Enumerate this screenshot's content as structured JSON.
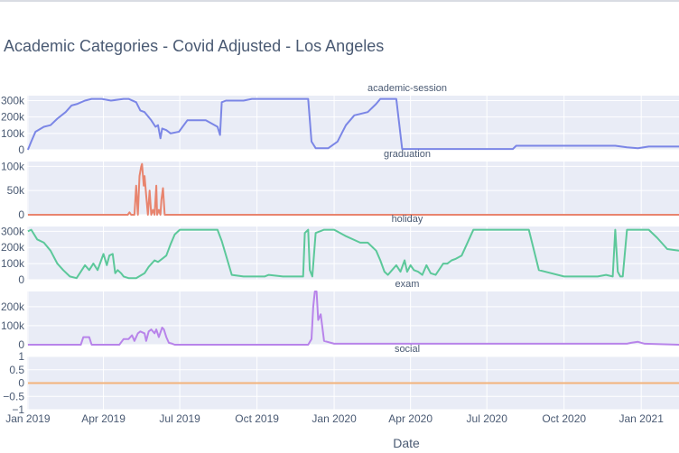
{
  "chart_data": {
    "type": "line",
    "title": "Academic Categories - Covid Adjusted - Los Angeles",
    "xlabel": "Date",
    "x_ticks": [
      "Jan 2019",
      "Apr 2019",
      "Jul 2019",
      "Oct 2019",
      "Jan 2020",
      "Apr 2020",
      "Jul 2020",
      "Oct 2020",
      "Jan 2021"
    ],
    "x_range": [
      "2018-12-31",
      "2021-02-15"
    ],
    "grid": true,
    "legend": "none",
    "panels": [
      {
        "name": "academic-session",
        "color": "#7b86e6",
        "ylim": [
          0,
          330000
        ],
        "yticks": [
          {
            "v": 0,
            "label": "0"
          },
          {
            "v": 100000,
            "label": "100k"
          },
          {
            "v": 200000,
            "label": "200k"
          },
          {
            "v": 300000,
            "label": "300k"
          }
        ],
        "x": [
          "2019-01-01",
          "2019-01-05",
          "2019-01-10",
          "2019-01-20",
          "2019-01-28",
          "2019-02-05",
          "2019-02-15",
          "2019-02-22",
          "2019-03-01",
          "2019-03-10",
          "2019-03-18",
          "2019-03-30",
          "2019-04-10",
          "2019-04-25",
          "2019-05-01",
          "2019-05-10",
          "2019-05-15",
          "2019-05-20",
          "2019-05-28",
          "2019-06-02",
          "2019-06-05",
          "2019-06-08",
          "2019-06-10",
          "2019-06-15",
          "2019-06-20",
          "2019-06-30",
          "2019-07-10",
          "2019-08-01",
          "2019-08-15",
          "2019-08-18",
          "2019-08-20",
          "2019-08-25",
          "2019-09-05",
          "2019-09-15",
          "2019-09-25",
          "2019-10-15",
          "2019-11-15",
          "2019-12-01",
          "2019-12-05",
          "2019-12-10",
          "2019-12-25",
          "2020-01-05",
          "2020-01-15",
          "2020-01-25",
          "2020-02-10",
          "2020-02-20",
          "2020-02-25",
          "2020-03-01",
          "2020-03-15",
          "2020-03-22",
          "2020-06-01",
          "2020-08-01",
          "2020-08-05",
          "2020-10-01",
          "2020-12-01",
          "2020-12-15",
          "2020-12-28",
          "2021-01-10",
          "2021-02-15"
        ],
        "y": [
          0,
          50000,
          110000,
          140000,
          150000,
          190000,
          230000,
          270000,
          280000,
          300000,
          310000,
          310000,
          300000,
          310000,
          310000,
          290000,
          240000,
          230000,
          180000,
          140000,
          150000,
          70000,
          130000,
          120000,
          100000,
          110000,
          180000,
          180000,
          140000,
          90000,
          290000,
          300000,
          300000,
          300000,
          310000,
          310000,
          310000,
          310000,
          50000,
          10000,
          10000,
          50000,
          150000,
          210000,
          230000,
          280000,
          310000,
          310000,
          310000,
          5000,
          5000,
          5000,
          25000,
          25000,
          25000,
          15000,
          10000,
          20000,
          20000
        ]
      },
      {
        "name": "graduation",
        "color": "#e8846e",
        "ylim": [
          0,
          110000
        ],
        "yticks": [
          {
            "v": 0,
            "label": "0"
          },
          {
            "v": 50000,
            "label": "50k"
          },
          {
            "v": 100000,
            "label": "100k"
          }
        ],
        "x": [
          "2019-01-01",
          "2019-04-30",
          "2019-05-02",
          "2019-05-04",
          "2019-05-08",
          "2019-05-10",
          "2019-05-12",
          "2019-05-14",
          "2019-05-16",
          "2019-05-17",
          "2019-05-19",
          "2019-05-20",
          "2019-05-22",
          "2019-05-24",
          "2019-05-26",
          "2019-05-28",
          "2019-05-30",
          "2019-06-01",
          "2019-06-03",
          "2019-06-04",
          "2019-06-06",
          "2019-06-08",
          "2019-06-09",
          "2019-06-11",
          "2019-06-13",
          "2019-06-15",
          "2021-02-15"
        ],
        "y": [
          0,
          0,
          5000,
          0,
          0,
          60000,
          0,
          80000,
          100000,
          105000,
          60000,
          80000,
          40000,
          0,
          50000,
          0,
          10000,
          0,
          60000,
          0,
          10000,
          0,
          30000,
          55000,
          0,
          0,
          0
        ]
      },
      {
        "name": "holiday",
        "color": "#5cc89a",
        "ylim": [
          0,
          330000
        ],
        "yticks": [
          {
            "v": 0,
            "label": "0"
          },
          {
            "v": 100000,
            "label": "100k"
          },
          {
            "v": 200000,
            "label": "200k"
          },
          {
            "v": 300000,
            "label": "300k"
          }
        ],
        "x": [
          "2019-01-01",
          "2019-01-05",
          "2019-01-12",
          "2019-01-20",
          "2019-01-28",
          "2019-02-05",
          "2019-02-12",
          "2019-02-20",
          "2019-02-28",
          "2019-03-05",
          "2019-03-10",
          "2019-03-15",
          "2019-03-20",
          "2019-03-25",
          "2019-04-01",
          "2019-04-05",
          "2019-04-08",
          "2019-04-12",
          "2019-04-15",
          "2019-04-18",
          "2019-04-22",
          "2019-04-25",
          "2019-05-01",
          "2019-05-10",
          "2019-05-20",
          "2019-05-25",
          "2019-06-01",
          "2019-06-05",
          "2019-06-10",
          "2019-06-15",
          "2019-06-20",
          "2019-06-25",
          "2019-07-01",
          "2019-08-15",
          "2019-08-20",
          "2019-09-01",
          "2019-09-15",
          "2019-10-01",
          "2019-10-10",
          "2019-10-15",
          "2019-11-01",
          "2019-11-10",
          "2019-11-25",
          "2019-11-27",
          "2019-12-01",
          "2019-12-03",
          "2019-12-06",
          "2019-12-10",
          "2019-12-20",
          "2020-01-01",
          "2020-01-15",
          "2020-02-01",
          "2020-02-10",
          "2020-02-20",
          "2020-02-25",
          "2020-03-01",
          "2020-03-05",
          "2020-03-10",
          "2020-03-15",
          "2020-03-20",
          "2020-03-25",
          "2020-03-28",
          "2020-04-01",
          "2020-04-05",
          "2020-04-10",
          "2020-04-15",
          "2020-04-20",
          "2020-04-25",
          "2020-05-01",
          "2020-05-10",
          "2020-05-15",
          "2020-05-20",
          "2020-05-25",
          "2020-06-01",
          "2020-06-15",
          "2020-07-05",
          "2020-07-20",
          "2020-08-10",
          "2020-08-20",
          "2020-09-01",
          "2020-10-01",
          "2020-11-01",
          "2020-11-10",
          "2020-11-20",
          "2020-11-28",
          "2020-12-01",
          "2020-12-04",
          "2020-12-07",
          "2020-12-10",
          "2020-12-15",
          "2021-01-10",
          "2021-01-20",
          "2021-02-01",
          "2021-02-15"
        ],
        "y": [
          300000,
          310000,
          250000,
          230000,
          180000,
          100000,
          60000,
          20000,
          10000,
          50000,
          90000,
          60000,
          100000,
          60000,
          160000,
          90000,
          150000,
          160000,
          40000,
          60000,
          40000,
          20000,
          10000,
          10000,
          40000,
          80000,
          120000,
          110000,
          130000,
          150000,
          220000,
          280000,
          310000,
          310000,
          240000,
          30000,
          20000,
          20000,
          20000,
          30000,
          20000,
          20000,
          20000,
          290000,
          310000,
          60000,
          20000,
          290000,
          310000,
          310000,
          270000,
          230000,
          230000,
          180000,
          120000,
          50000,
          30000,
          60000,
          90000,
          50000,
          120000,
          50000,
          90000,
          60000,
          50000,
          30000,
          90000,
          40000,
          30000,
          100000,
          100000,
          120000,
          130000,
          150000,
          310000,
          310000,
          310000,
          310000,
          310000,
          60000,
          20000,
          20000,
          20000,
          30000,
          20000,
          310000,
          50000,
          20000,
          20000,
          310000,
          310000,
          260000,
          190000,
          180000
        ]
      },
      {
        "name": "exam",
        "color": "#b884ea",
        "ylim": [
          0,
          280000
        ],
        "yticks": [
          {
            "v": 0,
            "label": "0"
          },
          {
            "v": 100000,
            "label": "100k"
          },
          {
            "v": 200000,
            "label": "200k"
          }
        ],
        "x": [
          "2019-01-01",
          "2019-03-05",
          "2019-03-08",
          "2019-03-15",
          "2019-03-18",
          "2019-04-20",
          "2019-04-25",
          "2019-05-01",
          "2019-05-05",
          "2019-05-08",
          "2019-05-12",
          "2019-05-15",
          "2019-05-20",
          "2019-05-22",
          "2019-05-25",
          "2019-05-28",
          "2019-06-01",
          "2019-06-03",
          "2019-06-06",
          "2019-06-10",
          "2019-06-12",
          "2019-06-15",
          "2019-06-18",
          "2019-06-22",
          "2019-06-25",
          "2019-12-01",
          "2019-12-05",
          "2019-12-07",
          "2019-12-09",
          "2019-12-11",
          "2019-12-13",
          "2019-12-16",
          "2019-12-20",
          "2020-01-01",
          "2020-12-15",
          "2020-12-20",
          "2020-12-28",
          "2021-01-05",
          "2021-02-15"
        ],
        "y": [
          0,
          0,
          40000,
          40000,
          0,
          0,
          30000,
          30000,
          50000,
          20000,
          60000,
          70000,
          60000,
          20000,
          70000,
          80000,
          60000,
          80000,
          40000,
          90000,
          80000,
          40000,
          10000,
          5000,
          0,
          0,
          30000,
          200000,
          280000,
          280000,
          130000,
          160000,
          20000,
          5000,
          5000,
          10000,
          15000,
          5000,
          0
        ]
      },
      {
        "name": "social",
        "color": "#f2b27a",
        "ylim": [
          -1,
          1
        ],
        "yticks": [
          {
            "v": -1,
            "label": "−1"
          },
          {
            "v": -0.5,
            "label": "−0.5"
          },
          {
            "v": 0,
            "label": "0"
          },
          {
            "v": 0.5,
            "label": "0.5"
          },
          {
            "v": 1,
            "label": "1"
          }
        ],
        "x": [
          "2019-01-01",
          "2021-02-15"
        ],
        "y": [
          0,
          0
        ]
      }
    ]
  }
}
